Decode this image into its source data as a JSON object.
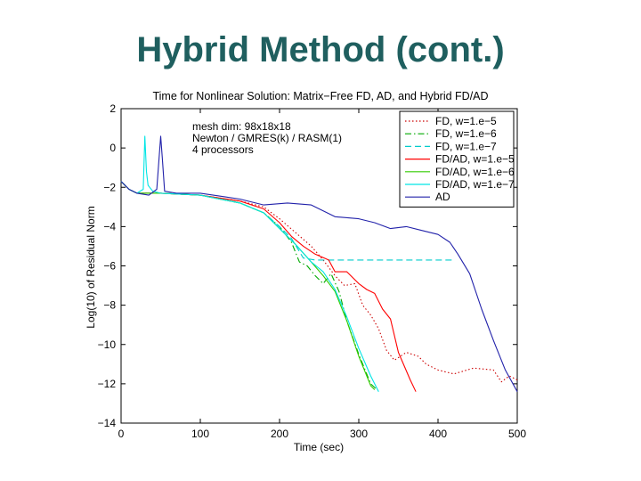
{
  "slide": {
    "title": "Hybrid Method (cont.)"
  },
  "chart_data": {
    "type": "line",
    "title": "Time for Nonlinear Solution: Matrix−Free FD, AD, and Hybrid FD/AD",
    "xlabel": "Time (sec)",
    "ylabel": "Log(10) of Residual Norm",
    "xlim": [
      0,
      500
    ],
    "ylim": [
      -14,
      2
    ],
    "xticks": [
      0,
      100,
      200,
      300,
      400,
      500
    ],
    "xtick_labels": [
      "0",
      "100",
      "200",
      "300",
      "400",
      "500"
    ],
    "yticks": [
      2,
      0,
      -2,
      -4,
      -6,
      -8,
      -10,
      -12,
      -14
    ],
    "ytick_labels": [
      "2",
      "0",
      "−2",
      "−4",
      "−6",
      "−8",
      "−10",
      "−12",
      "−14"
    ],
    "grid": false,
    "legend_position": "top-right",
    "annotation_lines": [
      "mesh dim: 98x18x18",
      "Newton / GMRES(k) / RASM(1)",
      "4 processors"
    ],
    "series": [
      {
        "name": "FD, w=1.e−5",
        "color": "#cc0000",
        "dash": "dotted",
        "points": [
          [
            0,
            -1.7
          ],
          [
            10,
            -2.1
          ],
          [
            20,
            -2.3
          ],
          [
            50,
            -2.3
          ],
          [
            100,
            -2.4
          ],
          [
            150,
            -2.7
          ],
          [
            180,
            -3.0
          ],
          [
            200,
            -3.6
          ],
          [
            220,
            -4.3
          ],
          [
            240,
            -5.0
          ],
          [
            255,
            -5.7
          ],
          [
            270,
            -6.5
          ],
          [
            282,
            -7.0
          ],
          [
            295,
            -6.9
          ],
          [
            305,
            -8.0
          ],
          [
            315,
            -8.5
          ],
          [
            325,
            -9.2
          ],
          [
            335,
            -10.3
          ],
          [
            345,
            -10.8
          ],
          [
            360,
            -10.4
          ],
          [
            375,
            -10.6
          ],
          [
            385,
            -11.0
          ],
          [
            400,
            -11.3
          ],
          [
            420,
            -11.5
          ],
          [
            445,
            -11.2
          ],
          [
            470,
            -11.3
          ],
          [
            480,
            -11.9
          ],
          [
            490,
            -11.6
          ],
          [
            500,
            -11.8
          ]
        ]
      },
      {
        "name": "FD, w=1.e−6",
        "color": "#00aa00",
        "dash": "dashdot",
        "points": [
          [
            0,
            -1.7
          ],
          [
            10,
            -2.1
          ],
          [
            20,
            -2.3
          ],
          [
            50,
            -2.3
          ],
          [
            100,
            -2.4
          ],
          [
            150,
            -2.8
          ],
          [
            180,
            -3.3
          ],
          [
            200,
            -4.0
          ],
          [
            215,
            -4.8
          ],
          [
            225,
            -5.8
          ],
          [
            235,
            -6.0
          ],
          [
            245,
            -6.5
          ],
          [
            255,
            -6.9
          ],
          [
            265,
            -6.4
          ],
          [
            275,
            -7.3
          ],
          [
            285,
            -8.8
          ],
          [
            300,
            -10.5
          ],
          [
            315,
            -12.0
          ],
          [
            323,
            -12.3
          ]
        ]
      },
      {
        "name": "FD, w=1.e−7",
        "color": "#00cccc",
        "dash": "dashed",
        "points": [
          [
            0,
            -1.7
          ],
          [
            10,
            -2.1
          ],
          [
            20,
            -2.3
          ],
          [
            50,
            -2.3
          ],
          [
            100,
            -2.4
          ],
          [
            150,
            -2.8
          ],
          [
            180,
            -3.3
          ],
          [
            200,
            -4.0
          ],
          [
            215,
            -4.6
          ],
          [
            230,
            -5.6
          ],
          [
            245,
            -5.7
          ],
          [
            300,
            -5.7
          ],
          [
            360,
            -5.7
          ],
          [
            420,
            -5.7
          ]
        ]
      },
      {
        "name": "FD/AD, w=1.e−5",
        "color": "#ff0000",
        "dash": "solid",
        "points": [
          [
            0,
            -1.7
          ],
          [
            10,
            -2.1
          ],
          [
            20,
            -2.3
          ],
          [
            50,
            -2.3
          ],
          [
            100,
            -2.4
          ],
          [
            150,
            -2.7
          ],
          [
            180,
            -3.1
          ],
          [
            200,
            -3.8
          ],
          [
            215,
            -4.5
          ],
          [
            230,
            -5.0
          ],
          [
            245,
            -5.4
          ],
          [
            262,
            -5.7
          ],
          [
            270,
            -6.3
          ],
          [
            285,
            -6.3
          ],
          [
            300,
            -6.9
          ],
          [
            310,
            -7.2
          ],
          [
            320,
            -7.4
          ],
          [
            330,
            -8.2
          ],
          [
            340,
            -8.7
          ],
          [
            350,
            -10.4
          ],
          [
            365,
            -11.8
          ],
          [
            372,
            -12.4
          ]
        ]
      },
      {
        "name": "FD/AD, w=1.e−6",
        "color": "#33cc00",
        "dash": "solid",
        "points": [
          [
            0,
            -1.7
          ],
          [
            10,
            -2.1
          ],
          [
            20,
            -2.3
          ],
          [
            50,
            -2.3
          ],
          [
            100,
            -2.4
          ],
          [
            150,
            -2.8
          ],
          [
            180,
            -3.3
          ],
          [
            200,
            -4.1
          ],
          [
            220,
            -4.9
          ],
          [
            240,
            -5.8
          ],
          [
            255,
            -6.5
          ],
          [
            270,
            -7.3
          ],
          [
            285,
            -8.8
          ],
          [
            300,
            -10.6
          ],
          [
            315,
            -12.1
          ],
          [
            320,
            -12.3
          ]
        ]
      },
      {
        "name": "FD/AD, w=1.e−7",
        "color": "#00e5e5",
        "dash": "solid",
        "points": [
          [
            0,
            -1.7
          ],
          [
            10,
            -2.1
          ],
          [
            20,
            -2.3
          ],
          [
            28,
            -2.1
          ],
          [
            30,
            0.6
          ],
          [
            32,
            -1.2
          ],
          [
            34,
            -1.9
          ],
          [
            40,
            -2.2
          ],
          [
            50,
            -2.3
          ],
          [
            100,
            -2.4
          ],
          [
            150,
            -2.8
          ],
          [
            180,
            -3.3
          ],
          [
            200,
            -4.1
          ],
          [
            220,
            -4.9
          ],
          [
            240,
            -5.8
          ],
          [
            255,
            -6.3
          ],
          [
            270,
            -7.2
          ],
          [
            285,
            -8.6
          ],
          [
            300,
            -10.2
          ],
          [
            315,
            -11.6
          ],
          [
            325,
            -12.4
          ]
        ]
      },
      {
        "name": "AD",
        "color": "#2222aa",
        "dash": "solid",
        "points": [
          [
            0,
            -1.7
          ],
          [
            10,
            -2.1
          ],
          [
            20,
            -2.3
          ],
          [
            35,
            -2.4
          ],
          [
            45,
            -2.1
          ],
          [
            48,
            -0.5
          ],
          [
            50,
            0.6
          ],
          [
            52,
            -0.5
          ],
          [
            55,
            -2.2
          ],
          [
            70,
            -2.3
          ],
          [
            100,
            -2.3
          ],
          [
            150,
            -2.6
          ],
          [
            180,
            -2.9
          ],
          [
            210,
            -2.8
          ],
          [
            240,
            -2.9
          ],
          [
            270,
            -3.5
          ],
          [
            300,
            -3.6
          ],
          [
            320,
            -3.8
          ],
          [
            340,
            -4.1
          ],
          [
            360,
            -4.0
          ],
          [
            380,
            -4.2
          ],
          [
            400,
            -4.4
          ],
          [
            415,
            -4.8
          ],
          [
            425,
            -5.4
          ],
          [
            440,
            -6.4
          ],
          [
            455,
            -8.2
          ],
          [
            470,
            -9.8
          ],
          [
            485,
            -11.3
          ],
          [
            500,
            -12.4
          ]
        ]
      }
    ]
  }
}
